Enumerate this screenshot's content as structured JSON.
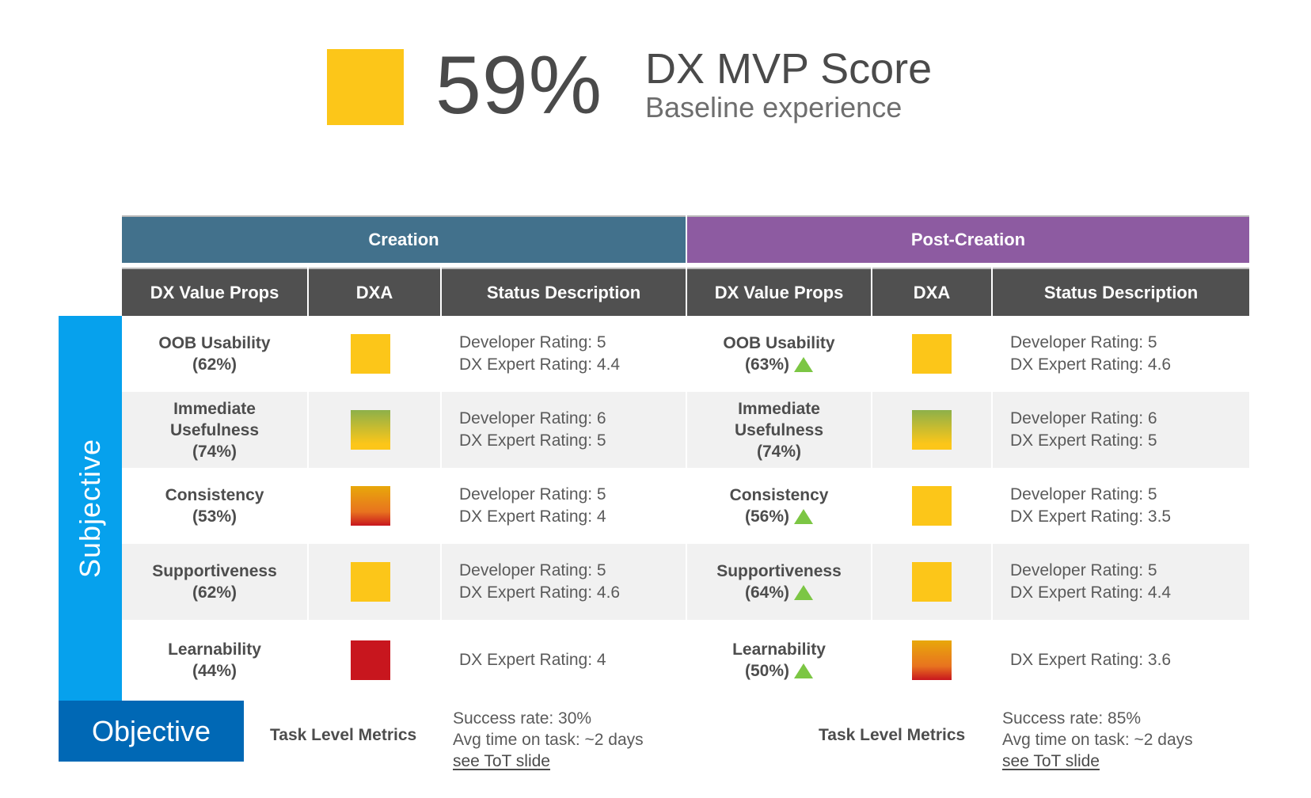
{
  "score": {
    "value": "59%",
    "title": "DX MVP Score",
    "subtitle": "Baseline experience",
    "swatch_color": "#fcc619"
  },
  "bands": [
    {
      "label": "Creation",
      "color": "#42718c"
    },
    {
      "label": "Post-Creation",
      "color": "#8d5ba1"
    }
  ],
  "column_headers": [
    "DX Value Props",
    "DXA",
    "Status Description",
    "DX Value Props",
    "DXA",
    "Status Description"
  ],
  "side_labels": {
    "subjective": "Subjective",
    "objective": "Objective"
  },
  "status_colors": {
    "yellow": "#fcc619",
    "green": "#8db04a",
    "red": "#c8161e",
    "orange": "#e8a80a",
    "trend_up": "#7cc644"
  },
  "rows": [
    {
      "creation": {
        "prop": "OOB Usability",
        "pct": "(62%)",
        "trend": null,
        "dxa": "yellow",
        "lines": [
          "Developer Rating: 5",
          "DX Expert Rating: 4.4"
        ]
      },
      "post": {
        "prop": "OOB Usability",
        "pct": "(63%)",
        "trend": "up",
        "dxa": "yellow",
        "lines": [
          "Developer Rating: 5",
          "DX Expert Rating: 4.6"
        ]
      }
    },
    {
      "creation": {
        "prop": "Immediate Usefulness",
        "pct": "(74%)",
        "trend": null,
        "dxa": "green-yellow",
        "lines": [
          "Developer Rating: 6",
          "DX Expert Rating: 5"
        ]
      },
      "post": {
        "prop": "Immediate Usefulness",
        "pct": "(74%)",
        "trend": null,
        "dxa": "green-yellow",
        "lines": [
          "Developer Rating: 6",
          "DX Expert Rating: 5"
        ]
      }
    },
    {
      "creation": {
        "prop": "Consistency",
        "pct": "(53%)",
        "trend": null,
        "dxa": "yellow-red",
        "lines": [
          "Developer Rating: 5",
          "DX Expert Rating: 4"
        ]
      },
      "post": {
        "prop": "Consistency",
        "pct": "(56%)",
        "trend": "up",
        "dxa": "yellow",
        "lines": [
          "Developer Rating: 5",
          "DX Expert Rating: 3.5"
        ]
      }
    },
    {
      "creation": {
        "prop": "Supportiveness",
        "pct": "(62%)",
        "trend": null,
        "dxa": "yellow",
        "lines": [
          "Developer Rating: 5",
          "DX Expert Rating: 4.6"
        ]
      },
      "post": {
        "prop": "Supportiveness",
        "pct": "(64%)",
        "trend": "up",
        "dxa": "yellow",
        "lines": [
          "Developer Rating: 5",
          "DX Expert Rating: 4.4"
        ]
      }
    },
    {
      "creation": {
        "prop": "Learnability",
        "pct": "(44%)",
        "trend": null,
        "dxa": "red",
        "lines": [
          "DX Expert Rating: 4"
        ]
      },
      "post": {
        "prop": "Learnability",
        "pct": "(50%)",
        "trend": "up",
        "dxa": "yellow-red",
        "lines": [
          "DX Expert Rating: 3.6"
        ]
      }
    }
  ],
  "objective": {
    "creation": {
      "label": "Task Level Metrics",
      "lines": [
        "Success rate: 30%",
        "Avg time on task: ~2 days"
      ],
      "link": "see ToT slide"
    },
    "post": {
      "label": "Task Level Metrics",
      "lines": [
        "Success rate: 85%",
        "Avg time on task: ~2 days"
      ],
      "link": "see ToT slide"
    }
  }
}
